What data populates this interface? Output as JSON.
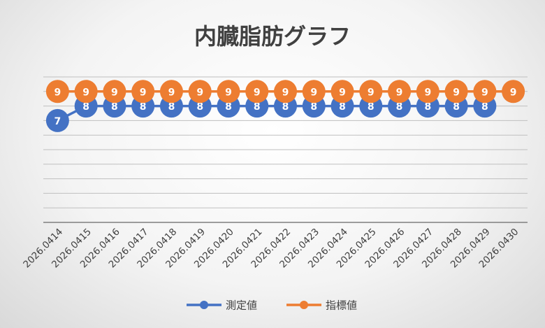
{
  "chart_data": {
    "type": "line",
    "title": "内臓脂肪グラフ",
    "xlabel": "",
    "ylabel": "",
    "categories": [
      "2026.0414",
      "2026.0415",
      "2026.0416",
      "2026.0417",
      "2026.0418",
      "2026.0419",
      "2026.0420",
      "2026.0421",
      "2026.0422",
      "2026.0423",
      "2026.0424",
      "2026.0425",
      "2026.0426",
      "2026.0427",
      "2026.0428",
      "2026.0429",
      "2026.0430"
    ],
    "ylim": [
      0,
      10
    ],
    "grid": true,
    "legend": "bottom",
    "series": [
      {
        "name": "測定値",
        "color": "#4472C4",
        "values": [
          7,
          8,
          8,
          8,
          8,
          8,
          8,
          8,
          8,
          8,
          8,
          8,
          8,
          8,
          8,
          8,
          null
        ]
      },
      {
        "name": "指標値",
        "color": "#ED7D31",
        "values": [
          9,
          9,
          9,
          9,
          9,
          9,
          9,
          9,
          9,
          9,
          9,
          9,
          9,
          9,
          9,
          9,
          9
        ]
      }
    ]
  }
}
